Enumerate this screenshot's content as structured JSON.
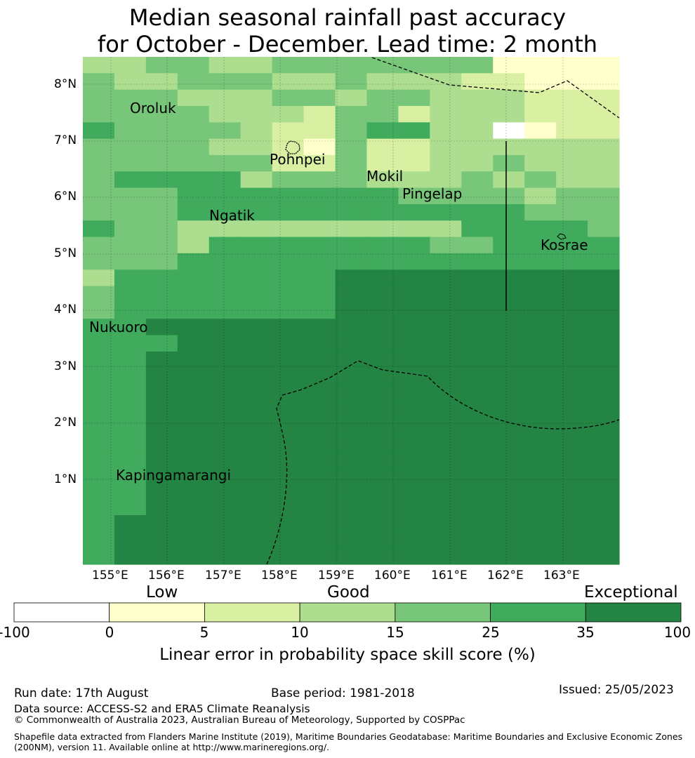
{
  "title": {
    "line1": "Median seasonal rainfall past accuracy",
    "line2": "for October - December. Lead time: 2 month"
  },
  "map": {
    "lat_ticks": [
      "8°N",
      "7°N",
      "6°N",
      "5°N",
      "4°N",
      "3°N",
      "2°N",
      "1°N"
    ],
    "lon_ticks": [
      "155°E",
      "156°E",
      "157°E",
      "158°E",
      "159°E",
      "160°E",
      "161°E",
      "162°E",
      "163°E"
    ],
    "places": [
      {
        "name": "Oroluk"
      },
      {
        "name": "Pohnpei"
      },
      {
        "name": "Mokil"
      },
      {
        "name": "Pingelap"
      },
      {
        "name": "Ngatik"
      },
      {
        "name": "Kosrae"
      },
      {
        "name": "Nukuoro"
      },
      {
        "name": "Kapingamarangi"
      }
    ],
    "category_colors": [
      "#ffffff",
      "#ffffcc",
      "#d9f0a3",
      "#addd8e",
      "#78c679",
      "#41ab5d",
      "#238443"
    ]
  },
  "colorbar": {
    "labels": {
      "low": "Low",
      "good": "Good",
      "exceptional": "Exceptional"
    },
    "ticks": [
      "-100",
      "0",
      "5",
      "10",
      "15",
      "25",
      "35",
      "100"
    ],
    "colors": [
      "#ffffff",
      "#ffffcc",
      "#d9f0a3",
      "#addd8e",
      "#78c679",
      "#41ab5d",
      "#238443"
    ],
    "axis_label": "Linear error in probability space skill score (%)"
  },
  "footer": {
    "run_date": "Run date: 17th August",
    "base_period": "Base period: 1981-2018",
    "issued": "Issued: 25/05/2023",
    "data_source": "Data source: ACCESS-S2 and ERA5 Climate Reanalysis",
    "copyright": "© Commonwealth of Australia 2023, Australian Bureau of Meteorology, Supported by COSPPac",
    "shapefile_line1": "Shapefile data extracted from Flanders Marine Institute (2019), Maritime Boundaries Geodatabase: Maritime Boundaries and Exclusive Economic Zones",
    "shapefile_line2": "(200NM), version 11. Available online at http://www.marineregions.org/."
  }
}
